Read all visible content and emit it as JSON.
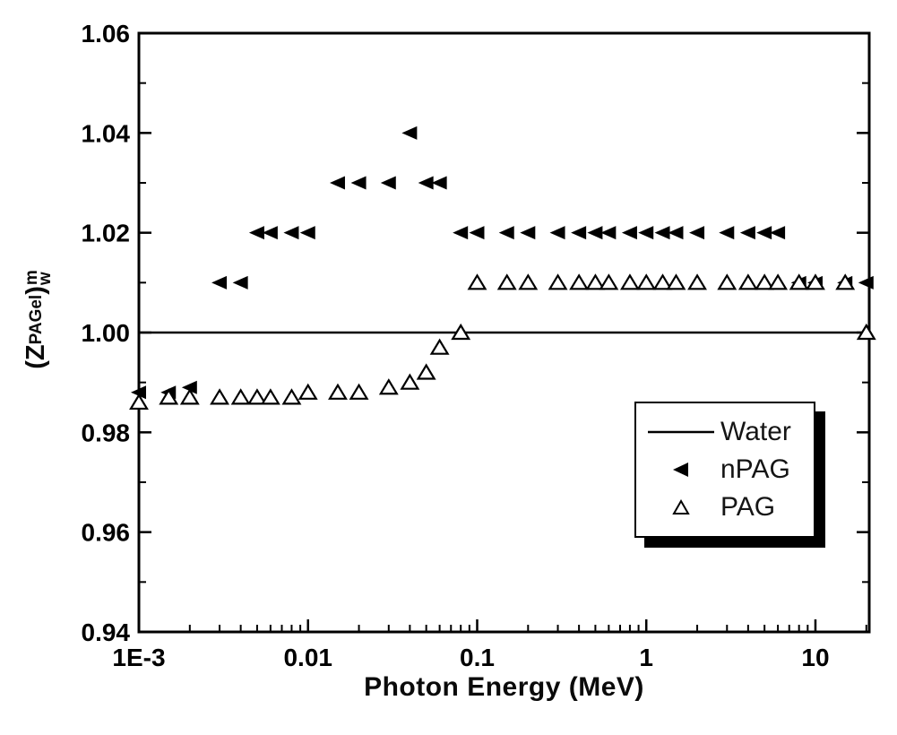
{
  "figure": {
    "background": "#ffffff",
    "ink_color": "#000000"
  },
  "chart_data": {
    "type": "scatter",
    "title": "",
    "xlabel": "Photon Energy (MeV)",
    "ylabel_parts": {
      "open": "(Z",
      "subscript": "PAGel",
      "close": ")",
      "sup": "m",
      "sub": "w"
    },
    "x_scale": "log",
    "x_range": [
      0.001,
      20.8
    ],
    "y_range": [
      0.94,
      1.06
    ],
    "grid": false,
    "x_ticks": [
      {
        "label": "1E-3",
        "value": 0.001
      },
      {
        "label": "0.01",
        "value": 0.01
      },
      {
        "label": "0.1",
        "value": 0.1
      },
      {
        "label": "1",
        "value": 1
      },
      {
        "label": "10",
        "value": 10
      }
    ],
    "y_ticks": [
      {
        "label": "1.06",
        "value": 1.06
      },
      {
        "label": "1.04",
        "value": 1.04
      },
      {
        "label": "1.02",
        "value": 1.02
      },
      {
        "label": "1.00",
        "value": 1.0
      },
      {
        "label": "0.98",
        "value": 0.98
      },
      {
        "label": "0.96",
        "value": 0.96
      },
      {
        "label": "0.94",
        "value": 0.94
      }
    ],
    "y_minor_ticks": [
      0.95,
      0.97,
      0.99,
      1.01,
      1.03,
      1.05
    ],
    "legend": {
      "position": "lower-right",
      "entries": [
        {
          "label": "Water",
          "marker": "solid-line"
        },
        {
          "label": "nPAG",
          "marker": "filled-left-triangle"
        },
        {
          "label": "PAG",
          "marker": "open-up-triangle"
        }
      ]
    },
    "series": [
      {
        "name": "Water",
        "type": "line",
        "color": "#000000",
        "y_value": 1.0,
        "x_start": 0.001,
        "x_end": 20.8
      },
      {
        "name": "nPAG",
        "type": "scatter",
        "marker": "filled-left-triangle",
        "color": "#000000",
        "points": [
          [
            0.001,
            0.988
          ],
          [
            0.0015,
            0.988
          ],
          [
            0.002,
            0.989
          ],
          [
            0.003,
            1.01
          ],
          [
            0.004,
            1.01
          ],
          [
            0.005,
            1.02
          ],
          [
            0.006,
            1.02
          ],
          [
            0.008,
            1.02
          ],
          [
            0.01,
            1.02
          ],
          [
            0.015,
            1.03
          ],
          [
            0.02,
            1.03
          ],
          [
            0.03,
            1.03
          ],
          [
            0.04,
            1.04
          ],
          [
            0.05,
            1.03
          ],
          [
            0.06,
            1.03
          ],
          [
            0.08,
            1.02
          ],
          [
            0.1,
            1.02
          ],
          [
            0.15,
            1.02
          ],
          [
            0.2,
            1.02
          ],
          [
            0.3,
            1.02
          ],
          [
            0.4,
            1.02
          ],
          [
            0.5,
            1.02
          ],
          [
            0.6,
            1.02
          ],
          [
            0.8,
            1.02
          ],
          [
            1,
            1.02
          ],
          [
            1.25,
            1.02
          ],
          [
            1.5,
            1.02
          ],
          [
            2,
            1.02
          ],
          [
            3,
            1.02
          ],
          [
            4,
            1.02
          ],
          [
            5,
            1.02
          ],
          [
            6,
            1.02
          ],
          [
            8,
            1.01
          ],
          [
            10,
            1.01
          ],
          [
            15,
            1.01
          ],
          [
            20,
            1.01
          ]
        ]
      },
      {
        "name": "PAG",
        "type": "scatter",
        "marker": "open-up-triangle",
        "color": "#000000",
        "points": [
          [
            0.001,
            0.986
          ],
          [
            0.0015,
            0.987
          ],
          [
            0.002,
            0.987
          ],
          [
            0.003,
            0.987
          ],
          [
            0.004,
            0.987
          ],
          [
            0.005,
            0.987
          ],
          [
            0.006,
            0.987
          ],
          [
            0.008,
            0.987
          ],
          [
            0.01,
            0.988
          ],
          [
            0.015,
            0.988
          ],
          [
            0.02,
            0.988
          ],
          [
            0.03,
            0.989
          ],
          [
            0.04,
            0.99
          ],
          [
            0.05,
            0.992
          ],
          [
            0.06,
            0.997
          ],
          [
            0.08,
            1.0
          ],
          [
            0.1,
            1.01
          ],
          [
            0.15,
            1.01
          ],
          [
            0.2,
            1.01
          ],
          [
            0.3,
            1.01
          ],
          [
            0.4,
            1.01
          ],
          [
            0.5,
            1.01
          ],
          [
            0.6,
            1.01
          ],
          [
            0.8,
            1.01
          ],
          [
            1,
            1.01
          ],
          [
            1.25,
            1.01
          ],
          [
            1.5,
            1.01
          ],
          [
            2,
            1.01
          ],
          [
            3,
            1.01
          ],
          [
            4,
            1.01
          ],
          [
            5,
            1.01
          ],
          [
            6,
            1.01
          ],
          [
            8,
            1.01
          ],
          [
            10,
            1.01
          ],
          [
            15,
            1.01
          ],
          [
            20,
            1.0
          ]
        ]
      }
    ]
  }
}
